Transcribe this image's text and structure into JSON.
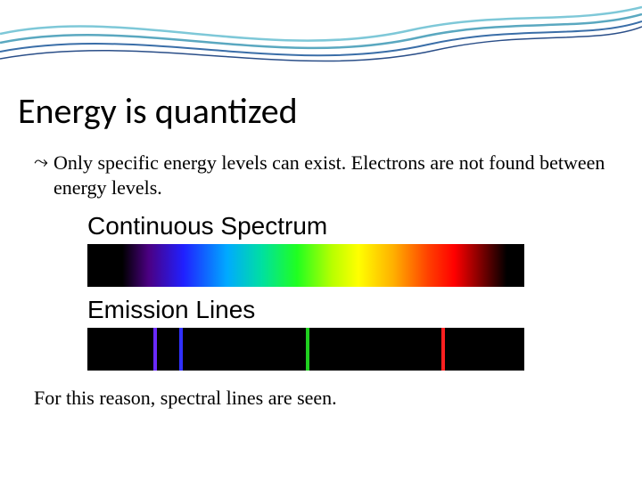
{
  "decoration": {
    "wave_colors": [
      "#7ec8d8",
      "#5aa8c0",
      "#3a6ea8",
      "#2a4e88"
    ]
  },
  "title": "Energy is quantized",
  "bullet": {
    "icon": "⤳",
    "text": "Only specific energy levels can exist.  Electrons are not found between energy levels."
  },
  "spectra": {
    "continuous": {
      "label": "Continuous Spectrum",
      "gradient_stops": [
        {
          "pct": 0,
          "color": "#000000"
        },
        {
          "pct": 8,
          "color": "#000000"
        },
        {
          "pct": 14,
          "color": "#4b0082"
        },
        {
          "pct": 22,
          "color": "#2020ff"
        },
        {
          "pct": 32,
          "color": "#00aaff"
        },
        {
          "pct": 40,
          "color": "#00e0a0"
        },
        {
          "pct": 48,
          "color": "#20ff20"
        },
        {
          "pct": 56,
          "color": "#b8ff00"
        },
        {
          "pct": 62,
          "color": "#ffff00"
        },
        {
          "pct": 70,
          "color": "#ffb000"
        },
        {
          "pct": 78,
          "color": "#ff4000"
        },
        {
          "pct": 84,
          "color": "#ff0000"
        },
        {
          "pct": 90,
          "color": "#800000"
        },
        {
          "pct": 96,
          "color": "#000000"
        },
        {
          "pct": 100,
          "color": "#000000"
        }
      ]
    },
    "emission": {
      "label": "Emission Lines",
      "background": "#000000",
      "lines": [
        {
          "position_pct": 15,
          "color": "#6a2aff"
        },
        {
          "position_pct": 21,
          "color": "#3030ff"
        },
        {
          "position_pct": 50,
          "color": "#20d020"
        },
        {
          "position_pct": 81,
          "color": "#ff2020"
        }
      ]
    }
  },
  "closing": "For this reason, spectral lines are seen."
}
